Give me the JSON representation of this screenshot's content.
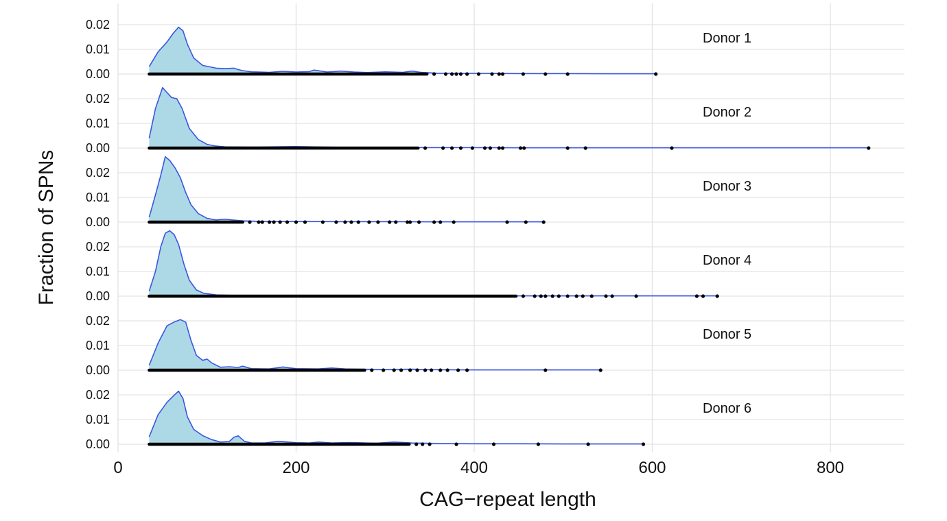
{
  "chart_data": {
    "type": "ridgeline-density",
    "xlabel": "CAG−repeat length",
    "ylabel": "Fraction of SPNs",
    "xlim": [
      0,
      880
    ],
    "xticks": [
      0,
      200,
      400,
      600,
      800
    ],
    "ylim": [
      0,
      0.025
    ],
    "yticks": [
      "0.00",
      "0.01",
      "0.02"
    ],
    "grid": true,
    "colors": {
      "fill": "#add8e6",
      "line": "#3a56e0",
      "points": "#000000",
      "grid": "#e3e3e3"
    },
    "panels": [
      {
        "label": "Donor 1",
        "density_x": [
          35,
          45,
          55,
          62,
          68,
          73,
          78,
          85,
          95,
          110,
          120,
          130,
          135,
          140,
          150,
          170,
          185,
          200,
          215,
          220,
          235,
          250,
          265,
          280,
          300,
          320,
          330,
          340,
          360,
          400,
          450,
          500,
          550,
          604
        ],
        "density_y": [
          0.003,
          0.009,
          0.013,
          0.0165,
          0.019,
          0.0175,
          0.012,
          0.0065,
          0.0035,
          0.0024,
          0.0022,
          0.0024,
          0.0018,
          0.0014,
          0.0009,
          0.0007,
          0.0011,
          0.0008,
          0.001,
          0.0016,
          0.0008,
          0.0012,
          0.0008,
          0.0006,
          0.0009,
          0.0007,
          0.0012,
          0.0007,
          0.0003,
          0.0003,
          0.0002,
          0.0002,
          0.0001,
          0.0001
        ],
        "outliers": [
          355,
          368,
          375,
          380,
          385,
          392,
          405,
          420,
          428,
          432,
          455,
          480,
          505,
          604
        ]
      },
      {
        "label": "Donor 2",
        "density_x": [
          35,
          42,
          50,
          55,
          60,
          66,
          72,
          80,
          90,
          100,
          110,
          120,
          150,
          200,
          250,
          300,
          350,
          400,
          450,
          500,
          600,
          700,
          800,
          843
        ],
        "density_y": [
          0.004,
          0.016,
          0.0245,
          0.0225,
          0.0205,
          0.02,
          0.016,
          0.008,
          0.0035,
          0.0015,
          0.0008,
          0.0005,
          0.0004,
          0.0006,
          0.0003,
          0.0003,
          0.0002,
          0.0002,
          0.0001,
          0.0001,
          0.0001,
          0.0001,
          0.0001,
          0.0001
        ],
        "outliers": [
          345,
          365,
          375,
          385,
          398,
          412,
          418,
          428,
          432,
          452,
          456,
          505,
          525,
          622,
          843
        ]
      },
      {
        "label": "Donor 3",
        "density_x": [
          35,
          42,
          48,
          53,
          58,
          64,
          70,
          76,
          82,
          90,
          100,
          110,
          120,
          130,
          140,
          160,
          200,
          250,
          300,
          350,
          400,
          450,
          478
        ],
        "density_y": [
          0.002,
          0.011,
          0.019,
          0.0265,
          0.025,
          0.022,
          0.018,
          0.012,
          0.007,
          0.0035,
          0.0015,
          0.0009,
          0.0012,
          0.0008,
          0.0005,
          0.0003,
          0.0003,
          0.0002,
          0.0002,
          0.0001,
          0.0001,
          0.0001,
          0.0001
        ],
        "outliers": [
          148,
          158,
          162,
          170,
          175,
          182,
          190,
          200,
          210,
          230,
          245,
          255,
          262,
          270,
          282,
          292,
          305,
          312,
          325,
          328,
          338,
          355,
          362,
          377,
          437,
          458,
          478
        ]
      },
      {
        "label": "Donor 4",
        "density_x": [
          35,
          42,
          48,
          53,
          58,
          63,
          68,
          74,
          80,
          88,
          96,
          110,
          130,
          160,
          200,
          250,
          300,
          350,
          400,
          450,
          500,
          600,
          673
        ],
        "density_y": [
          0.002,
          0.01,
          0.02,
          0.0255,
          0.0265,
          0.025,
          0.021,
          0.013,
          0.0065,
          0.0025,
          0.0012,
          0.0005,
          0.0003,
          0.0002,
          0.0002,
          0.0001,
          0.0002,
          0.0001,
          0.0001,
          0.0001,
          0.0001,
          0.0001,
          0.0001
        ],
        "outliers": [
          455,
          468,
          475,
          480,
          488,
          495,
          505,
          515,
          522,
          532,
          548,
          555,
          582,
          650,
          657,
          673
        ]
      },
      {
        "label": "Donor 5",
        "density_x": [
          35,
          45,
          55,
          63,
          70,
          76,
          82,
          88,
          95,
          100,
          105,
          115,
          125,
          135,
          140,
          150,
          170,
          185,
          200,
          225,
          240,
          255,
          270,
          300,
          330,
          360,
          400,
          450,
          500,
          542
        ],
        "density_y": [
          0.002,
          0.011,
          0.018,
          0.0195,
          0.0205,
          0.0195,
          0.012,
          0.006,
          0.004,
          0.0045,
          0.003,
          0.0012,
          0.0014,
          0.0011,
          0.0016,
          0.0006,
          0.0005,
          0.0013,
          0.0006,
          0.0005,
          0.0009,
          0.0005,
          0.0004,
          0.0003,
          0.0004,
          0.0002,
          0.0001,
          0.0001,
          0.0001,
          0.0001
        ],
        "outliers": [
          285,
          298,
          310,
          318,
          328,
          336,
          345,
          352,
          362,
          370,
          382,
          392,
          480,
          542
        ]
      },
      {
        "label": "Donor 6",
        "density_x": [
          35,
          45,
          55,
          62,
          68,
          73,
          78,
          85,
          95,
          105,
          115,
          125,
          130,
          135,
          142,
          150,
          165,
          180,
          200,
          215,
          225,
          240,
          260,
          290,
          310,
          330,
          360,
          400,
          450,
          500,
          550,
          590
        ],
        "density_y": [
          0.003,
          0.012,
          0.017,
          0.0195,
          0.0215,
          0.0185,
          0.011,
          0.006,
          0.0035,
          0.0019,
          0.0009,
          0.0011,
          0.0028,
          0.0034,
          0.0012,
          0.0005,
          0.0005,
          0.0012,
          0.0006,
          0.0005,
          0.0009,
          0.0005,
          0.0007,
          0.0004,
          0.0009,
          0.0005,
          0.0003,
          0.0002,
          0.0002,
          0.0001,
          0.0001,
          0.0001
        ],
        "outliers": [
          335,
          342,
          350,
          380,
          422,
          472,
          528,
          590
        ]
      }
    ]
  }
}
